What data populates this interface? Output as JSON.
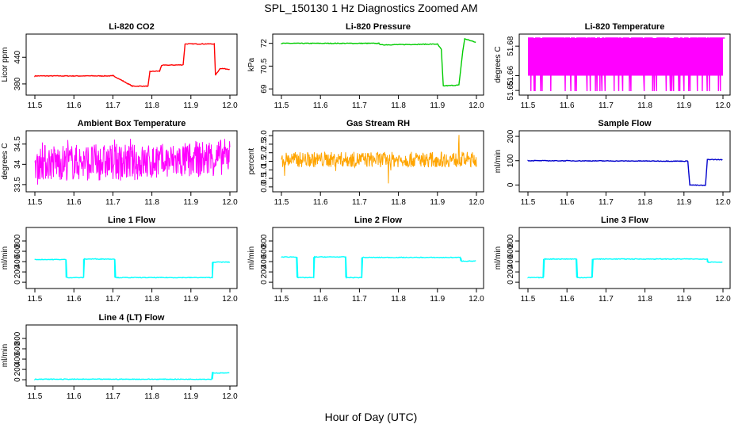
{
  "title": "SPL_150130  1 Hz Diagnostics Zoomed AM",
  "xlabel": "Hour of Day (UTC)",
  "chart_data": [
    {
      "type": "line",
      "title": "Li-820 CO2",
      "ylabel": "Licor ppm",
      "color": "#ff0000",
      "xlim": [
        11.5,
        12.0
      ],
      "xticks": [
        11.5,
        11.6,
        11.7,
        11.8,
        11.9,
        12.0
      ],
      "ylim": [
        362,
        485
      ],
      "yticks": [
        380,
        440
      ],
      "series": [
        {
          "x": [
            11.5,
            11.7,
            11.7,
            11.75,
            11.755,
            11.79,
            11.795,
            11.82,
            11.825,
            11.88,
            11.885,
            11.96,
            11.963,
            11.975,
            12.0
          ],
          "y": [
            398,
            398,
            399,
            375,
            375,
            375,
            408,
            409,
            422,
            423,
            470,
            470,
            400,
            415,
            413
          ]
        }
      ]
    },
    {
      "type": "line",
      "title": "Li-820 Pressure",
      "ylabel": "kPa",
      "color": "#00cc00",
      "xlim": [
        11.5,
        12.0
      ],
      "xticks": [
        11.5,
        11.6,
        11.7,
        11.8,
        11.9,
        12.0
      ],
      "ylim": [
        68.8,
        72.4
      ],
      "yticks": [
        69.0,
        70.5,
        72.0
      ],
      "series": [
        {
          "x": [
            11.5,
            11.75,
            11.755,
            11.9,
            11.91,
            11.915,
            11.955,
            11.965,
            11.97,
            12.0
          ],
          "y": [
            72.0,
            72.0,
            71.9,
            71.95,
            71.6,
            69.2,
            69.25,
            71.5,
            72.3,
            72.05
          ]
        }
      ]
    },
    {
      "type": "line",
      "title": "Li-820 Temperature",
      "ylabel": "degrees C",
      "color": "#ff00ff",
      "xlim": [
        11.5,
        12.0
      ],
      "xticks": [
        11.5,
        11.6,
        11.7,
        11.8,
        11.9,
        12.0
      ],
      "ylim": [
        51.649,
        51.686
      ],
      "yticks": [
        51.65,
        51.66,
        51.68
      ],
      "series": [
        {
          "x": [
            11.5,
            12.0
          ],
          "y": [
            51.686,
            51.649
          ]
        }
      ]
    },
    {
      "type": "line",
      "title": "Ambient Box Temperature",
      "ylabel": "degrees C",
      "color": "#ff00ff",
      "xlim": [
        11.5,
        12.0
      ],
      "xticks": [
        11.5,
        11.6,
        11.7,
        11.8,
        11.9,
        12.0
      ],
      "ylim": [
        33.4,
        34.75
      ],
      "yticks": [
        33.5,
        34.0,
        34.5
      ],
      "series": [
        {
          "x": [
            11.5,
            11.8,
            11.9,
            12.0
          ],
          "y": [
            34.05,
            34.05,
            34.1,
            34.2
          ]
        }
      ]
    },
    {
      "type": "line",
      "title": "Gas Stream RH",
      "ylabel": "percent",
      "color": "#ffa500",
      "xlim": [
        11.5,
        12.0
      ],
      "xticks": [
        11.5,
        11.6,
        11.7,
        11.8,
        11.9,
        12.0
      ],
      "ylim": [
        -0.1,
        3.1
      ],
      "yticks": [
        0.0,
        0.5,
        1.0,
        1.5,
        2.0,
        2.5,
        3.0
      ],
      "series": [
        {
          "x": [
            11.5,
            12.0
          ],
          "y": [
            1.6,
            1.6
          ]
        }
      ]
    },
    {
      "type": "line",
      "title": "Sample Flow",
      "ylabel": "ml/min",
      "color": "#0000cc",
      "xlim": [
        11.5,
        12.0
      ],
      "xticks": [
        11.5,
        11.6,
        11.7,
        11.8,
        11.9,
        12.0
      ],
      "ylim": [
        -15,
        210
      ],
      "yticks": [
        0,
        100,
        200
      ],
      "series": [
        {
          "x": [
            11.5,
            11.91,
            11.915,
            11.955,
            11.96,
            12.0
          ],
          "y": [
            100,
            98,
            0,
            -2,
            105,
            104
          ]
        }
      ]
    },
    {
      "type": "line",
      "title": "Line 1 Flow",
      "ylabel": "ml/min",
      "color": "#00ffff",
      "xlim": [
        11.5,
        12.0
      ],
      "xticks": [
        11.5,
        11.6,
        11.7,
        11.8,
        11.9,
        12.0
      ],
      "ylim": [
        -60,
        1000
      ],
      "yticks": [
        0,
        200,
        400,
        600,
        800
      ],
      "series": [
        {
          "x": [
            11.5,
            11.58,
            11.58,
            11.625,
            11.625,
            11.705,
            11.705,
            11.955,
            11.955,
            12.0
          ],
          "y": [
            440,
            440,
            90,
            90,
            450,
            450,
            90,
            90,
            390,
            390
          ]
        }
      ]
    },
    {
      "type": "line",
      "title": "Line 2 Flow",
      "ylabel": "ml/min",
      "color": "#00ffff",
      "xlim": [
        11.5,
        12.0
      ],
      "xticks": [
        11.5,
        11.6,
        11.7,
        11.8,
        11.9,
        12.0
      ],
      "ylim": [
        -60,
        1000
      ],
      "yticks": [
        0,
        200,
        400,
        600,
        800
      ],
      "series": [
        {
          "x": [
            11.5,
            11.54,
            11.54,
            11.583,
            11.583,
            11.665,
            11.665,
            11.706,
            11.706,
            11.96,
            11.96,
            12.0
          ],
          "y": [
            490,
            490,
            90,
            90,
            490,
            490,
            90,
            90,
            480,
            480,
            410,
            410
          ]
        }
      ]
    },
    {
      "type": "line",
      "title": "Line 3 Flow",
      "ylabel": "ml/min",
      "color": "#00ffff",
      "xlim": [
        11.5,
        12.0
      ],
      "xticks": [
        11.5,
        11.6,
        11.7,
        11.8,
        11.9,
        12.0
      ],
      "ylim": [
        -60,
        1000
      ],
      "yticks": [
        0,
        200,
        400,
        600,
        800
      ],
      "series": [
        {
          "x": [
            11.5,
            11.54,
            11.54,
            11.625,
            11.625,
            11.665,
            11.665,
            11.96,
            11.96,
            12.0
          ],
          "y": [
            90,
            90,
            450,
            450,
            90,
            90,
            450,
            450,
            390,
            390
          ]
        }
      ]
    },
    {
      "type": "line",
      "title": "Line 4 (LT) Flow",
      "ylabel": "ml/min",
      "color": "#00ffff",
      "xlim": [
        11.5,
        12.0
      ],
      "xticks": [
        11.5,
        11.6,
        11.7,
        11.8,
        11.9,
        12.0
      ],
      "ylim": [
        -60,
        1000
      ],
      "yticks": [
        0,
        200,
        400,
        600,
        800
      ],
      "series": [
        {
          "x": [
            11.5,
            11.955,
            11.955,
            11.96,
            12.0
          ],
          "y": [
            10,
            10,
            150,
            130,
            130
          ]
        }
      ]
    }
  ]
}
